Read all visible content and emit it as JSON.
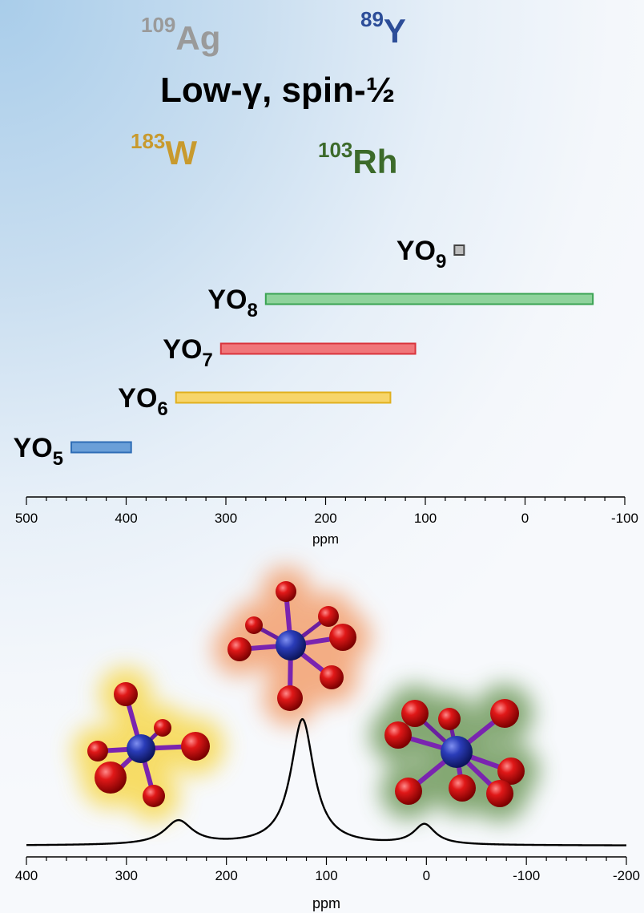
{
  "header": {
    "title": "Low-γ, spin-½",
    "nuclei": [
      {
        "mass": "109",
        "symbol": "Ag",
        "color": "#9a9a9a"
      },
      {
        "mass": "89",
        "symbol": "Y",
        "color": "#2c4d98"
      },
      {
        "mass": "183",
        "symbol": "W",
        "color": "#c89a2e"
      },
      {
        "mass": "103",
        "symbol": "Rh",
        "color": "#3c6a2a"
      }
    ]
  },
  "chart_data": [
    {
      "type": "bar",
      "orientation": "horizontal-range",
      "xlabel": "ppm",
      "xlim": [
        500,
        -100
      ],
      "xticks": [
        "500",
        "400",
        "300",
        "200",
        "100",
        "0",
        "-100"
      ],
      "grid": false,
      "series": [
        {
          "label": "YO",
          "sub": "9",
          "from": 70,
          "to": 62,
          "color": "#bdbdbd",
          "stroke": "#444444"
        },
        {
          "label": "YO",
          "sub": "8",
          "from": 260,
          "to": -68,
          "color": "#8fd39c",
          "stroke": "#3aa352"
        },
        {
          "label": "YO",
          "sub": "7",
          "from": 305,
          "to": 110,
          "color": "#f0767a",
          "stroke": "#d9343c"
        },
        {
          "label": "YO",
          "sub": "6",
          "from": 350,
          "to": 135,
          "color": "#f7d56a",
          "stroke": "#e0b01f"
        },
        {
          "label": "YO",
          "sub": "5",
          "from": 455,
          "to": 395,
          "color": "#6a9fd8",
          "stroke": "#2e6db6"
        }
      ]
    },
    {
      "type": "line",
      "xlabel": "ppm",
      "xlim": [
        400,
        -200
      ],
      "xticks": [
        "400",
        "300",
        "200",
        "100",
        "0",
        "-100",
        "-200"
      ],
      "grid": false,
      "peaks": [
        {
          "center": 248,
          "height": 0.19,
          "width": 17
        },
        {
          "center": 124,
          "height": 1.0,
          "width": 14
        },
        {
          "center": 2,
          "height": 0.16,
          "width": 13
        }
      ],
      "baseline": 0.0,
      "line_color": "#000000"
    }
  ],
  "structures": [
    {
      "name": "yellow-cluster",
      "glow": "#f7d84e"
    },
    {
      "name": "orange-cluster",
      "glow": "#f3a070"
    },
    {
      "name": "green-cluster",
      "glow": "#6f9a5c"
    }
  ]
}
